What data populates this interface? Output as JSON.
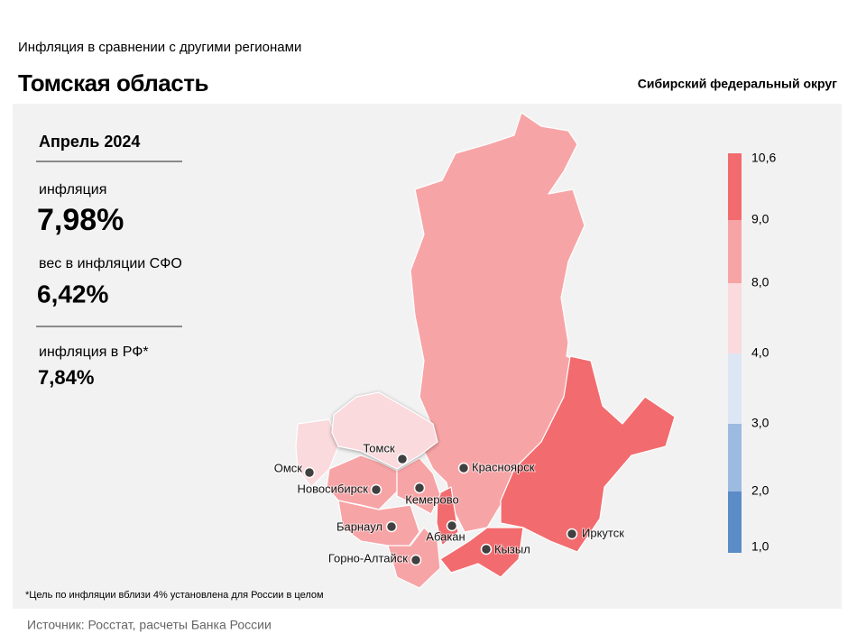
{
  "header": {
    "subtitle": "Инфляция  в сравнении  с другими  регионами",
    "title": "Томская область",
    "district": "Сибирский федеральный округ"
  },
  "panel": {
    "period": "Апрель 2024",
    "inflation_label": "инфляция",
    "inflation_value": "7,98%",
    "weight_label": "вес в инфляции  СФО",
    "weight_value": "6,42%",
    "rf_label": "инфляция  в РФ*",
    "rf_value": "7,84%"
  },
  "legend": {
    "labels": [
      "10,6",
      "9,0",
      "8,0",
      "4,0",
      "3,0",
      "2,0",
      "1,0"
    ],
    "colors": [
      "#f26b6e",
      "#f7a4a6",
      "#fadadd",
      "#dde6f5",
      "#9dbbe0",
      "#5b8cc8"
    ]
  },
  "cities": [
    {
      "label": "Томск",
      "color": "#fadadd"
    },
    {
      "label": "Красноярск",
      "color": "#f7a4a6"
    },
    {
      "label": "Омск",
      "color": "#fadadd"
    },
    {
      "label": "Новосибирск",
      "color": "#f7a4a6"
    },
    {
      "label": "Кемерово",
      "color": "#f7a4a6"
    },
    {
      "label": "Барнаул",
      "color": "#f7a4a6"
    },
    {
      "label": "Абакан",
      "color": "#f26b6e"
    },
    {
      "label": "Кызыл",
      "color": "#f26b6e"
    },
    {
      "label": "Иркутск",
      "color": "#f26b6e"
    },
    {
      "label": "Горно-Алтайск",
      "color": "#f7a4a6"
    }
  ],
  "footnote": "*Цель по инфляции вблизи 4% установлена для России в целом",
  "source": "Источник: Росстат, расчеты Банка России"
}
